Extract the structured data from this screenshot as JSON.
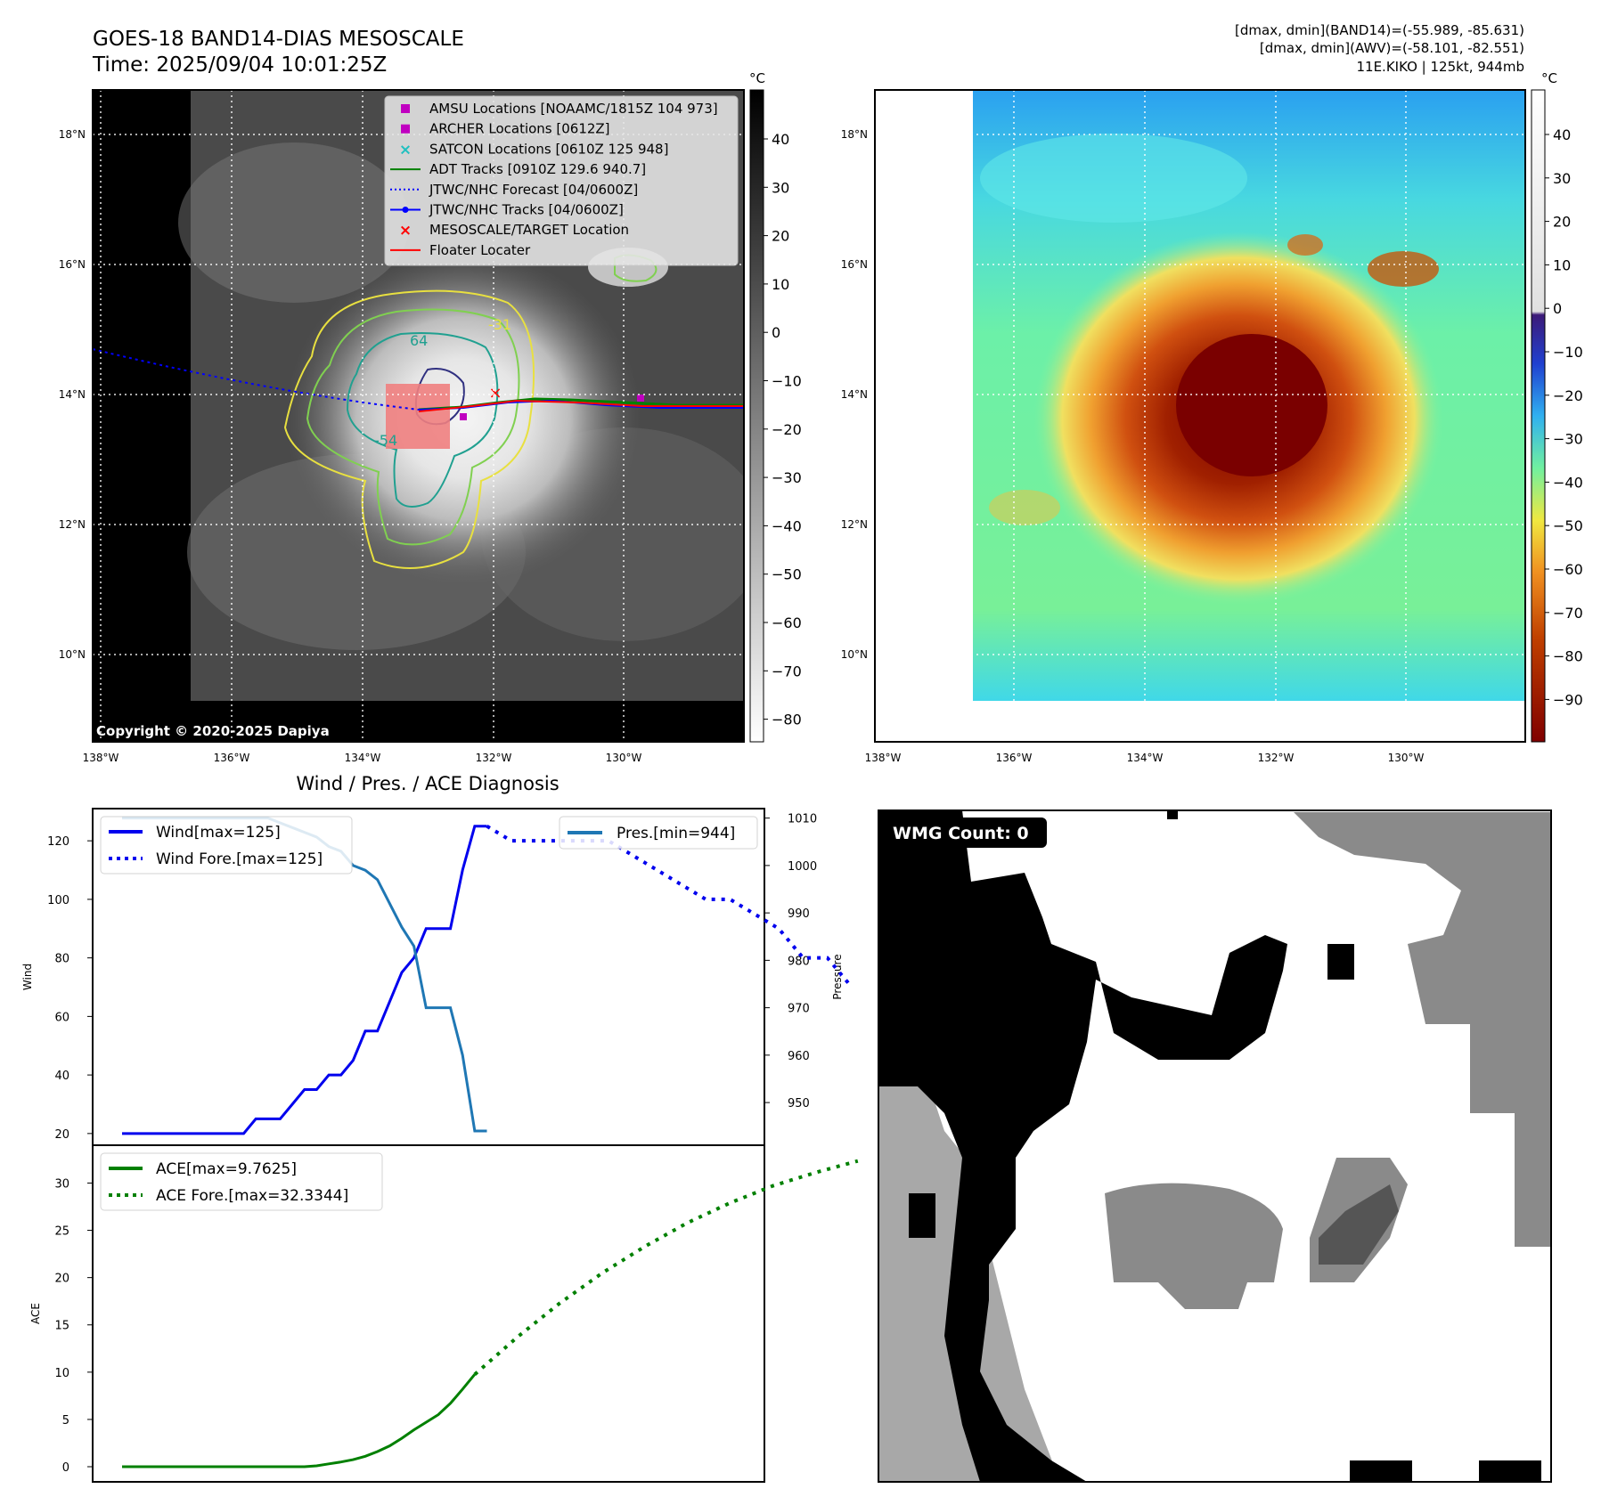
{
  "header": {
    "title_line1": "GOES-18 BAND14-DIAS MESOSCALE",
    "title_line2": "Time: 2025/09/04 10:01:25Z",
    "right_line1": "[dmax, dmin](BAND14)=(-55.989, -85.631)",
    "right_line2": "[dmax, dmin](AWV)=(-58.101, -82.551)",
    "right_line3": "11E.KIKO | 125kt, 944mb"
  },
  "map_axes": {
    "lat_labels": [
      "18°N",
      "16°N",
      "14°N",
      "12°N",
      "10°N"
    ],
    "lon_labels": [
      "138°W",
      "136°W",
      "134°W",
      "132°W",
      "130°W"
    ]
  },
  "ir_panel": {
    "copyright": "Copyright © 2020-2025 Dapiya",
    "legend": [
      {
        "label": "AMSU Locations [NOAAMC/1815Z 104 973]",
        "marker": "square",
        "color": "#c000c0"
      },
      {
        "label": "ARCHER Locations [0612Z]",
        "marker": "square",
        "color": "#c000c0"
      },
      {
        "label": "SATCON Locations [0610Z 125 948]",
        "marker": "x",
        "color": "#20c0c0"
      },
      {
        "label": "ADT Tracks [0910Z 129.6 940.7]",
        "marker": "line",
        "color": "#008000"
      },
      {
        "label": "JTWC/NHC Forecast [04/0600Z]",
        "marker": "dotted",
        "color": "#0000ff"
      },
      {
        "label": "JTWC/NHC Tracks [04/0600Z]",
        "marker": "line-dot",
        "color": "#0000ff"
      },
      {
        "label": "MESOSCALE/TARGET Location",
        "marker": "x",
        "color": "#ff0000"
      },
      {
        "label": "Floater Locater",
        "marker": "line",
        "color": "#ff0000"
      }
    ],
    "contour_labels": [
      "64",
      "-54",
      "-31"
    ],
    "colorbar": {
      "unit": "°C",
      "ticks": [
        "40",
        "30",
        "20",
        "10",
        "0",
        "−10",
        "−20",
        "−30",
        "−40",
        "−50",
        "−60",
        "−70",
        "−80"
      ],
      "colors": [
        "#000000",
        "#ffffff"
      ]
    }
  },
  "awv_panel": {
    "colorbar": {
      "unit": "°C",
      "ticks": [
        "40",
        "30",
        "20",
        "10",
        "0",
        "−10",
        "−20",
        "−30",
        "−40",
        "−50",
        "−60",
        "−70",
        "−80",
        "−90"
      ]
    }
  },
  "wmg_panel": {
    "badge": "WMG Count: 0"
  },
  "chart_data": [
    {
      "type": "line",
      "title": "Wind / Pres. / ACE Diagnosis",
      "xlabel": "",
      "ylabel": "Wind",
      "ylabel_right": "Pressure",
      "ylim": [
        16,
        131
      ],
      "ylim_right": [
        941,
        1012
      ],
      "yticks": [
        "120",
        "100",
        "80",
        "60",
        "40",
        "20"
      ],
      "yticks_right": [
        "1010",
        "1000",
        "990",
        "980",
        "970",
        "960",
        "950"
      ],
      "legend_left": [
        "Wind[max=125]",
        "Wind Fore.[max=125]"
      ],
      "legend_right": [
        "Pres.[min=944]"
      ],
      "series": [
        {
          "name": "Wind[max=125]",
          "style": "solid",
          "color": "#0000ee",
          "values": [
            20,
            20,
            20,
            20,
            20,
            20,
            20,
            20,
            20,
            20,
            20,
            25,
            25,
            25,
            30,
            35,
            35,
            40,
            40,
            45,
            55,
            55,
            65,
            75,
            80,
            90,
            90,
            90,
            110,
            125,
            125
          ]
        },
        {
          "name": "Wind Fore.[max=125]",
          "style": "dotted",
          "color": "#0000ee",
          "values": [
            125,
            120,
            120,
            120,
            120,
            120,
            115,
            110,
            105,
            100,
            100,
            95,
            90,
            80,
            80,
            70
          ],
          "start_index": 30,
          "step": 2
        }
      ],
      "series_right": [
        {
          "name": "Pres.[min=944]",
          "style": "solid",
          "color": "#1f77b4",
          "values": [
            1010,
            1010,
            1010,
            1010,
            1010,
            1010,
            1010,
            1010,
            1010,
            1010,
            1010,
            1010,
            1010,
            1009,
            1008,
            1007,
            1006,
            1004,
            1003,
            1000,
            999,
            997,
            992,
            987,
            983,
            970,
            970,
            970,
            960,
            944,
            944
          ]
        }
      ]
    },
    {
      "type": "line",
      "title": "",
      "xlabel": "",
      "ylabel": "ACE",
      "ylim": [
        -1.6,
        34
      ],
      "yticks": [
        "30",
        "25",
        "20",
        "15",
        "10",
        "5",
        "0"
      ],
      "legend": [
        "ACE[max=9.7625]",
        "ACE Fore.[max=32.3344]"
      ],
      "series": [
        {
          "name": "ACE[max=9.7625]",
          "style": "solid",
          "color": "#008000",
          "values": [
            0,
            0,
            0,
            0,
            0,
            0,
            0,
            0,
            0,
            0,
            0,
            0,
            0,
            0,
            0,
            0,
            0.1,
            0.3,
            0.5,
            0.75,
            1.1,
            1.6,
            2.2,
            3.0,
            3.9,
            4.7,
            5.5,
            6.7,
            8.2,
            9.7625
          ]
        },
        {
          "name": "ACE Fore.[max=32.3344]",
          "style": "dotted",
          "color": "#008000",
          "values": [
            9.7625,
            13.7,
            17.3,
            20.5,
            23.3,
            25.8,
            27.9,
            29.7,
            31.1,
            32.3344
          ],
          "start_index": 29,
          "step": 3.5
        }
      ]
    }
  ]
}
